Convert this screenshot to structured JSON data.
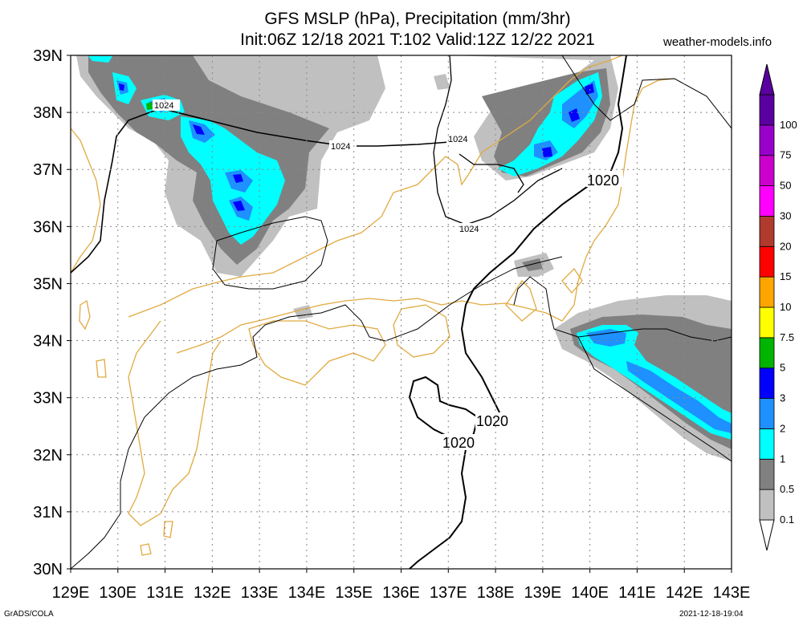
{
  "header": {
    "title_line1": "GFS MSLP (hPa), Precipitation (mm/3hr)",
    "title_line2": "Init:06Z 12/18 2021 T:102 Valid:12Z 12/22 2021",
    "site": "weather-models.info"
  },
  "footer": {
    "credit": "GrADS/COLA",
    "timestamp": "2021-12-18-19:04"
  },
  "axes": {
    "lat_labels": [
      "30N",
      "31N",
      "32N",
      "33N",
      "34N",
      "35N",
      "36N",
      "37N",
      "38N",
      "39N"
    ],
    "lon_labels": [
      "129E",
      "130E",
      "131E",
      "132E",
      "133E",
      "134E",
      "135E",
      "136E",
      "137E",
      "138E",
      "139E",
      "140E",
      "141E",
      "142E",
      "143E"
    ],
    "lat_range": [
      30,
      39
    ],
    "lon_range": [
      129,
      143
    ]
  },
  "legend": {
    "labels": [
      "0.1",
      "0.5",
      "1",
      "2",
      "3",
      "5",
      "7.5",
      "10",
      "15",
      "20",
      "30",
      "50",
      "75",
      "100"
    ],
    "colors": [
      "#c0c0c0",
      "#808080",
      "#00ffff",
      "#1e90ff",
      "#0000ff",
      "#00b400",
      "#ffff00",
      "#ffa500",
      "#ff0000",
      "#b03a2e",
      "#ff00ff",
      "#cc00cc",
      "#9900cc",
      "#5a00a0"
    ]
  },
  "contours": {
    "isobar_labels": [
      "1024",
      "1024",
      "1024",
      "1024",
      "1020",
      "1020",
      "1020"
    ]
  },
  "colors": {
    "coastline": "#e0aa40",
    "isobar": "#000000"
  }
}
